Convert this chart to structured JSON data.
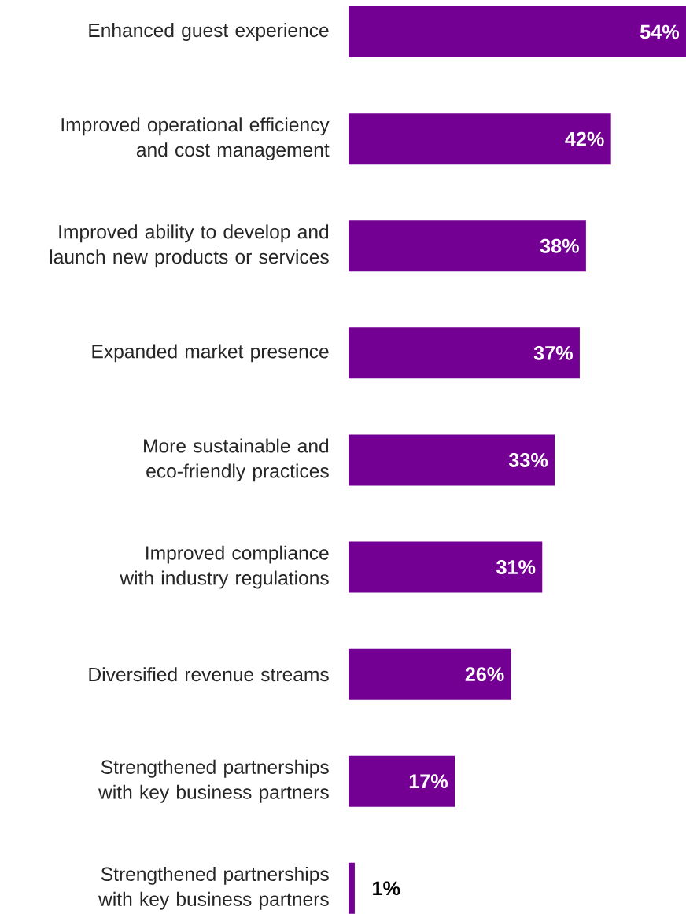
{
  "chart_data": {
    "type": "bar",
    "orientation": "horizontal",
    "color": "#730092",
    "categories": [
      "Enhanced guest experience",
      "Improved operational efficiency and cost management",
      "Improved ability to develop and launch new products or services",
      "Expanded market presence",
      "More sustainable and eco-friendly practices",
      "Improved compliance with industry regulations",
      "Diversified revenue streams",
      "Strengthened partnerships with key business partners",
      "Strengthened partnerships with key business partners"
    ],
    "values": [
      54,
      42,
      38,
      37,
      33,
      31,
      26,
      17,
      1
    ],
    "value_labels": [
      "54%",
      "42%",
      "38%",
      "37%",
      "33%",
      "31%",
      "26%",
      "17%",
      "1%"
    ]
  }
}
